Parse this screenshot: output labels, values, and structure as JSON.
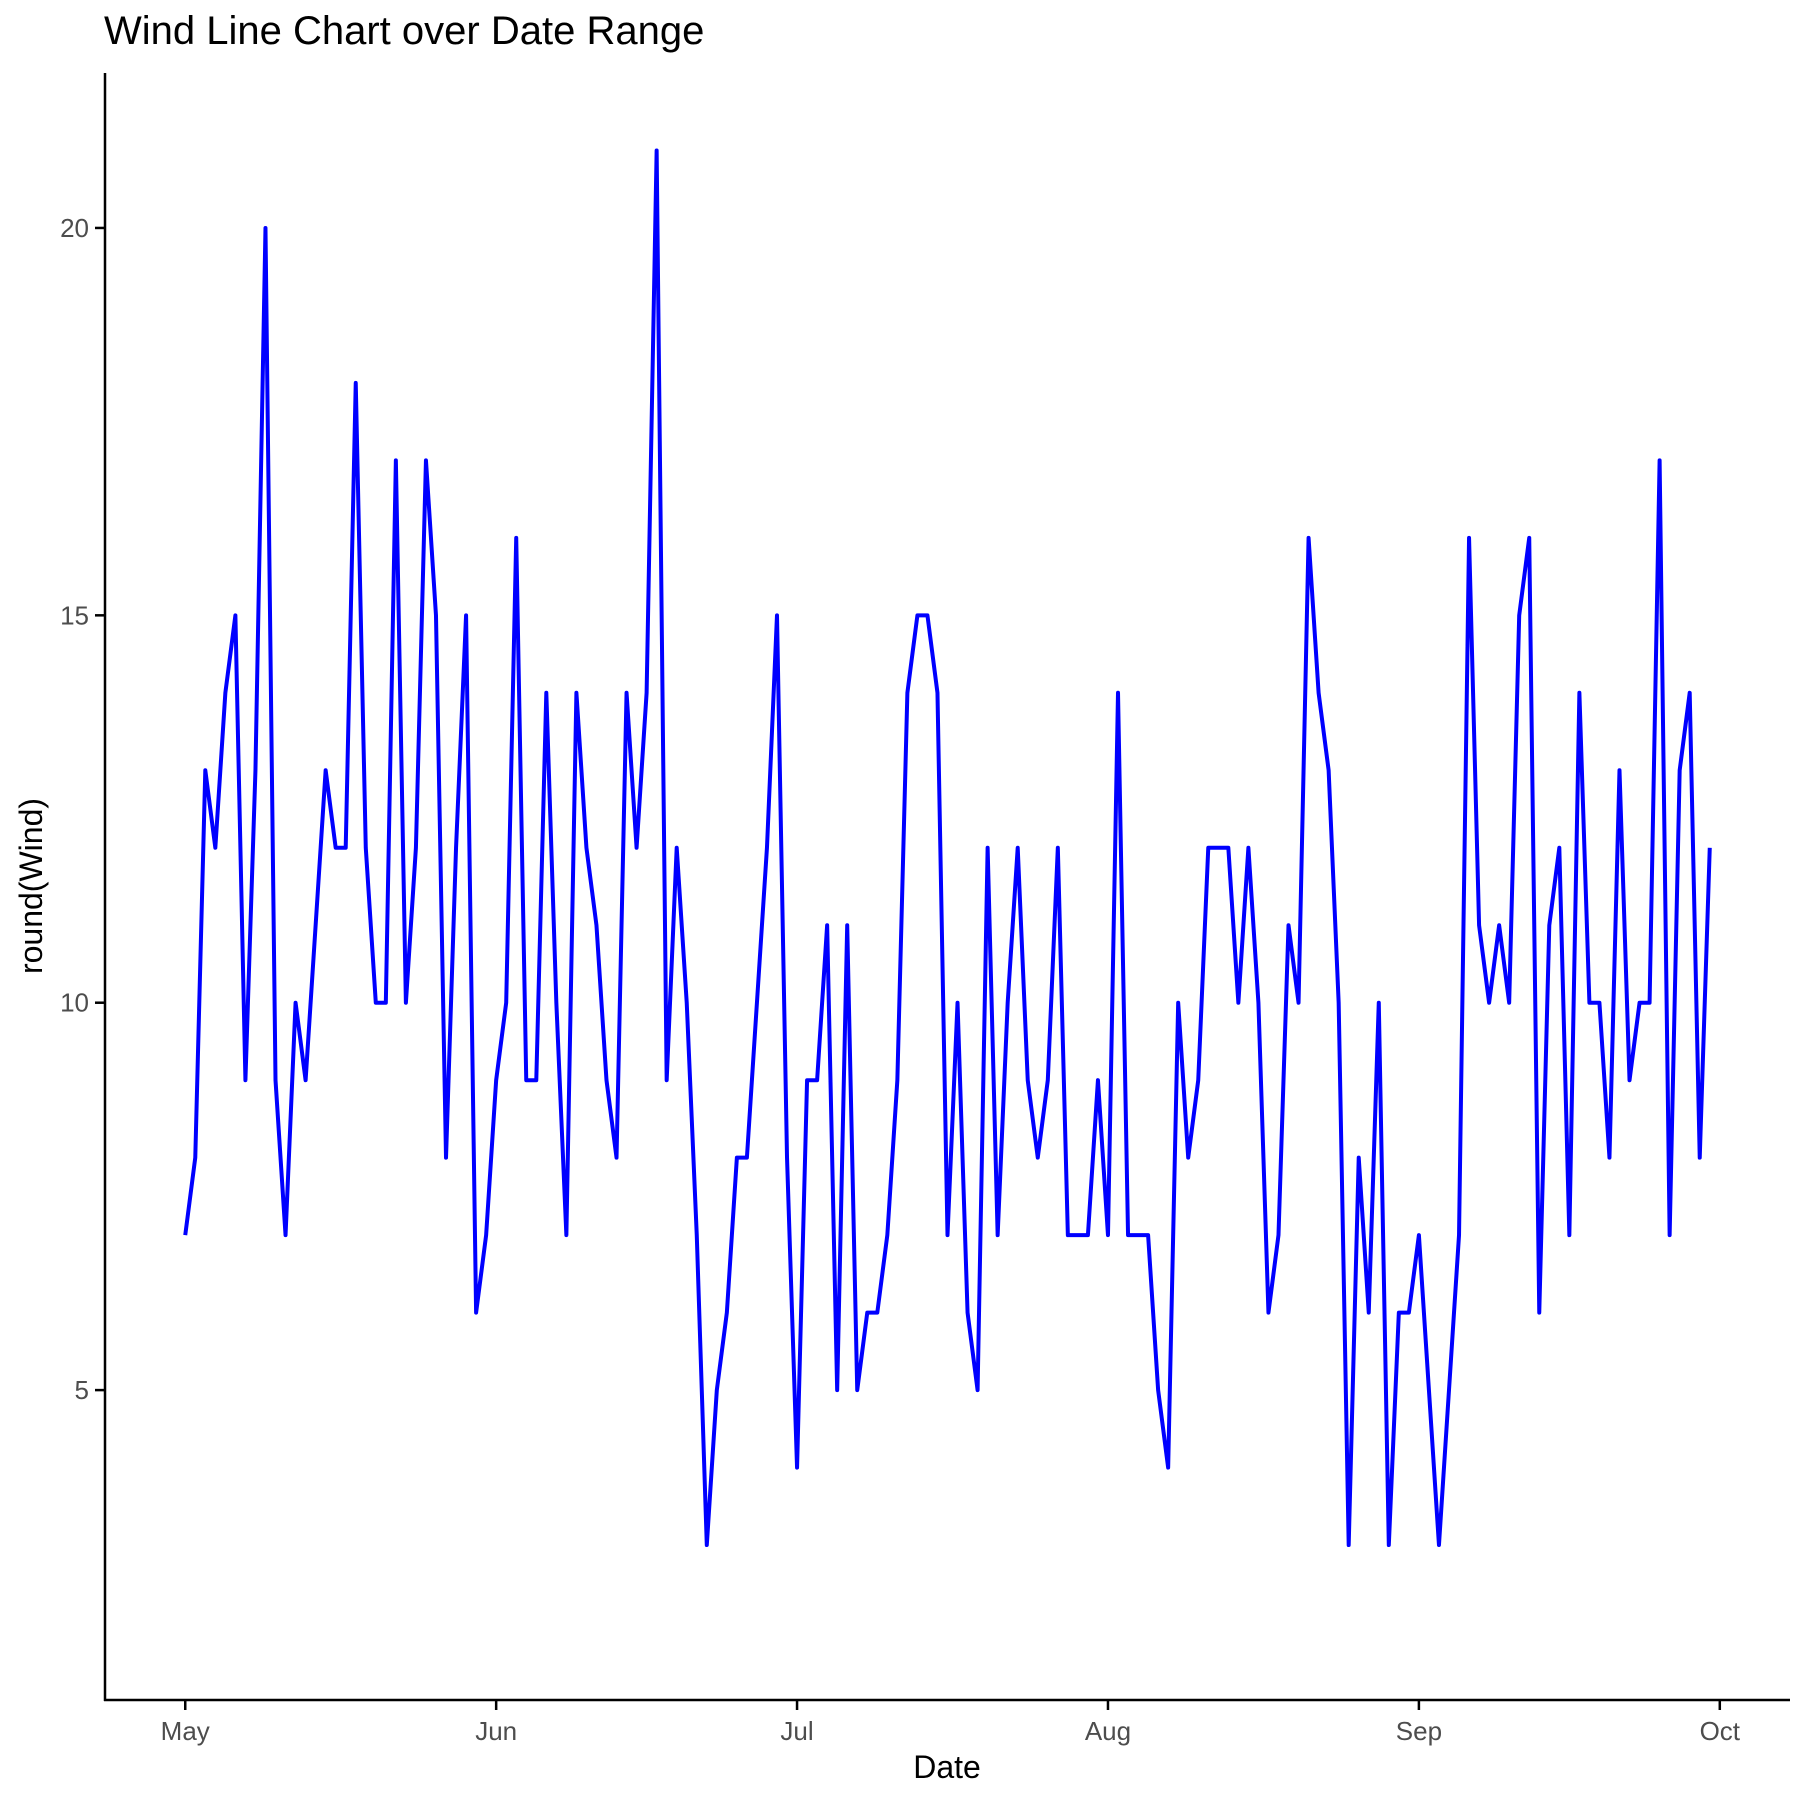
{
  "chart_data": {
    "type": "line",
    "title": "Wind Line Chart over Date Range",
    "xlabel": "Date",
    "ylabel": "round(Wind)",
    "x_start": "1973-05-01",
    "x_ticks": [
      {
        "label": "May",
        "date": "1973-05-01"
      },
      {
        "label": "Jun",
        "date": "1973-06-01"
      },
      {
        "label": "Jul",
        "date": "1973-07-01"
      },
      {
        "label": "Aug",
        "date": "1973-08-01"
      },
      {
        "label": "Sep",
        "date": "1973-09-01"
      },
      {
        "label": "Oct",
        "date": "1973-10-01"
      }
    ],
    "xlim": [
      "1973-04-23",
      "1973-10-08"
    ],
    "y_ticks": [
      5,
      10,
      15,
      20
    ],
    "ylim": [
      1.0,
      22.0
    ],
    "grid": false,
    "legend": "none",
    "series": [
      {
        "color": "#0000ff",
        "values": [
          7,
          8,
          13,
          12,
          14,
          15,
          9,
          13,
          20,
          9,
          7,
          10,
          9,
          11,
          13,
          12,
          12,
          18,
          12,
          10,
          10,
          17,
          10,
          12,
          17,
          15,
          8,
          12,
          15,
          6,
          7,
          9,
          10,
          16,
          9,
          9,
          14,
          10,
          7,
          14,
          12,
          11,
          9,
          8,
          14,
          12,
          14,
          21,
          9,
          12,
          10,
          7,
          3,
          5,
          6,
          8,
          8,
          10,
          12,
          15,
          8,
          4,
          9,
          9,
          11,
          5,
          11,
          5,
          6,
          6,
          7,
          9,
          14,
          15,
          15,
          14,
          7,
          10,
          6,
          5,
          12,
          7,
          10,
          12,
          9,
          8,
          9,
          12,
          7,
          7,
          7,
          9,
          7,
          14,
          7,
          7,
          7,
          5,
          4,
          10,
          8,
          9,
          12,
          12,
          12,
          10,
          12,
          10,
          6,
          7,
          11,
          10,
          16,
          14,
          13,
          10,
          3,
          8,
          6,
          10,
          3,
          6,
          6,
          7,
          5,
          3,
          5,
          7,
          16,
          11,
          10,
          11,
          10,
          15,
          16,
          6,
          11,
          12,
          7,
          14,
          10,
          10,
          8,
          13,
          9,
          10,
          10,
          17,
          7,
          13,
          14,
          8,
          12
        ]
      }
    ]
  }
}
